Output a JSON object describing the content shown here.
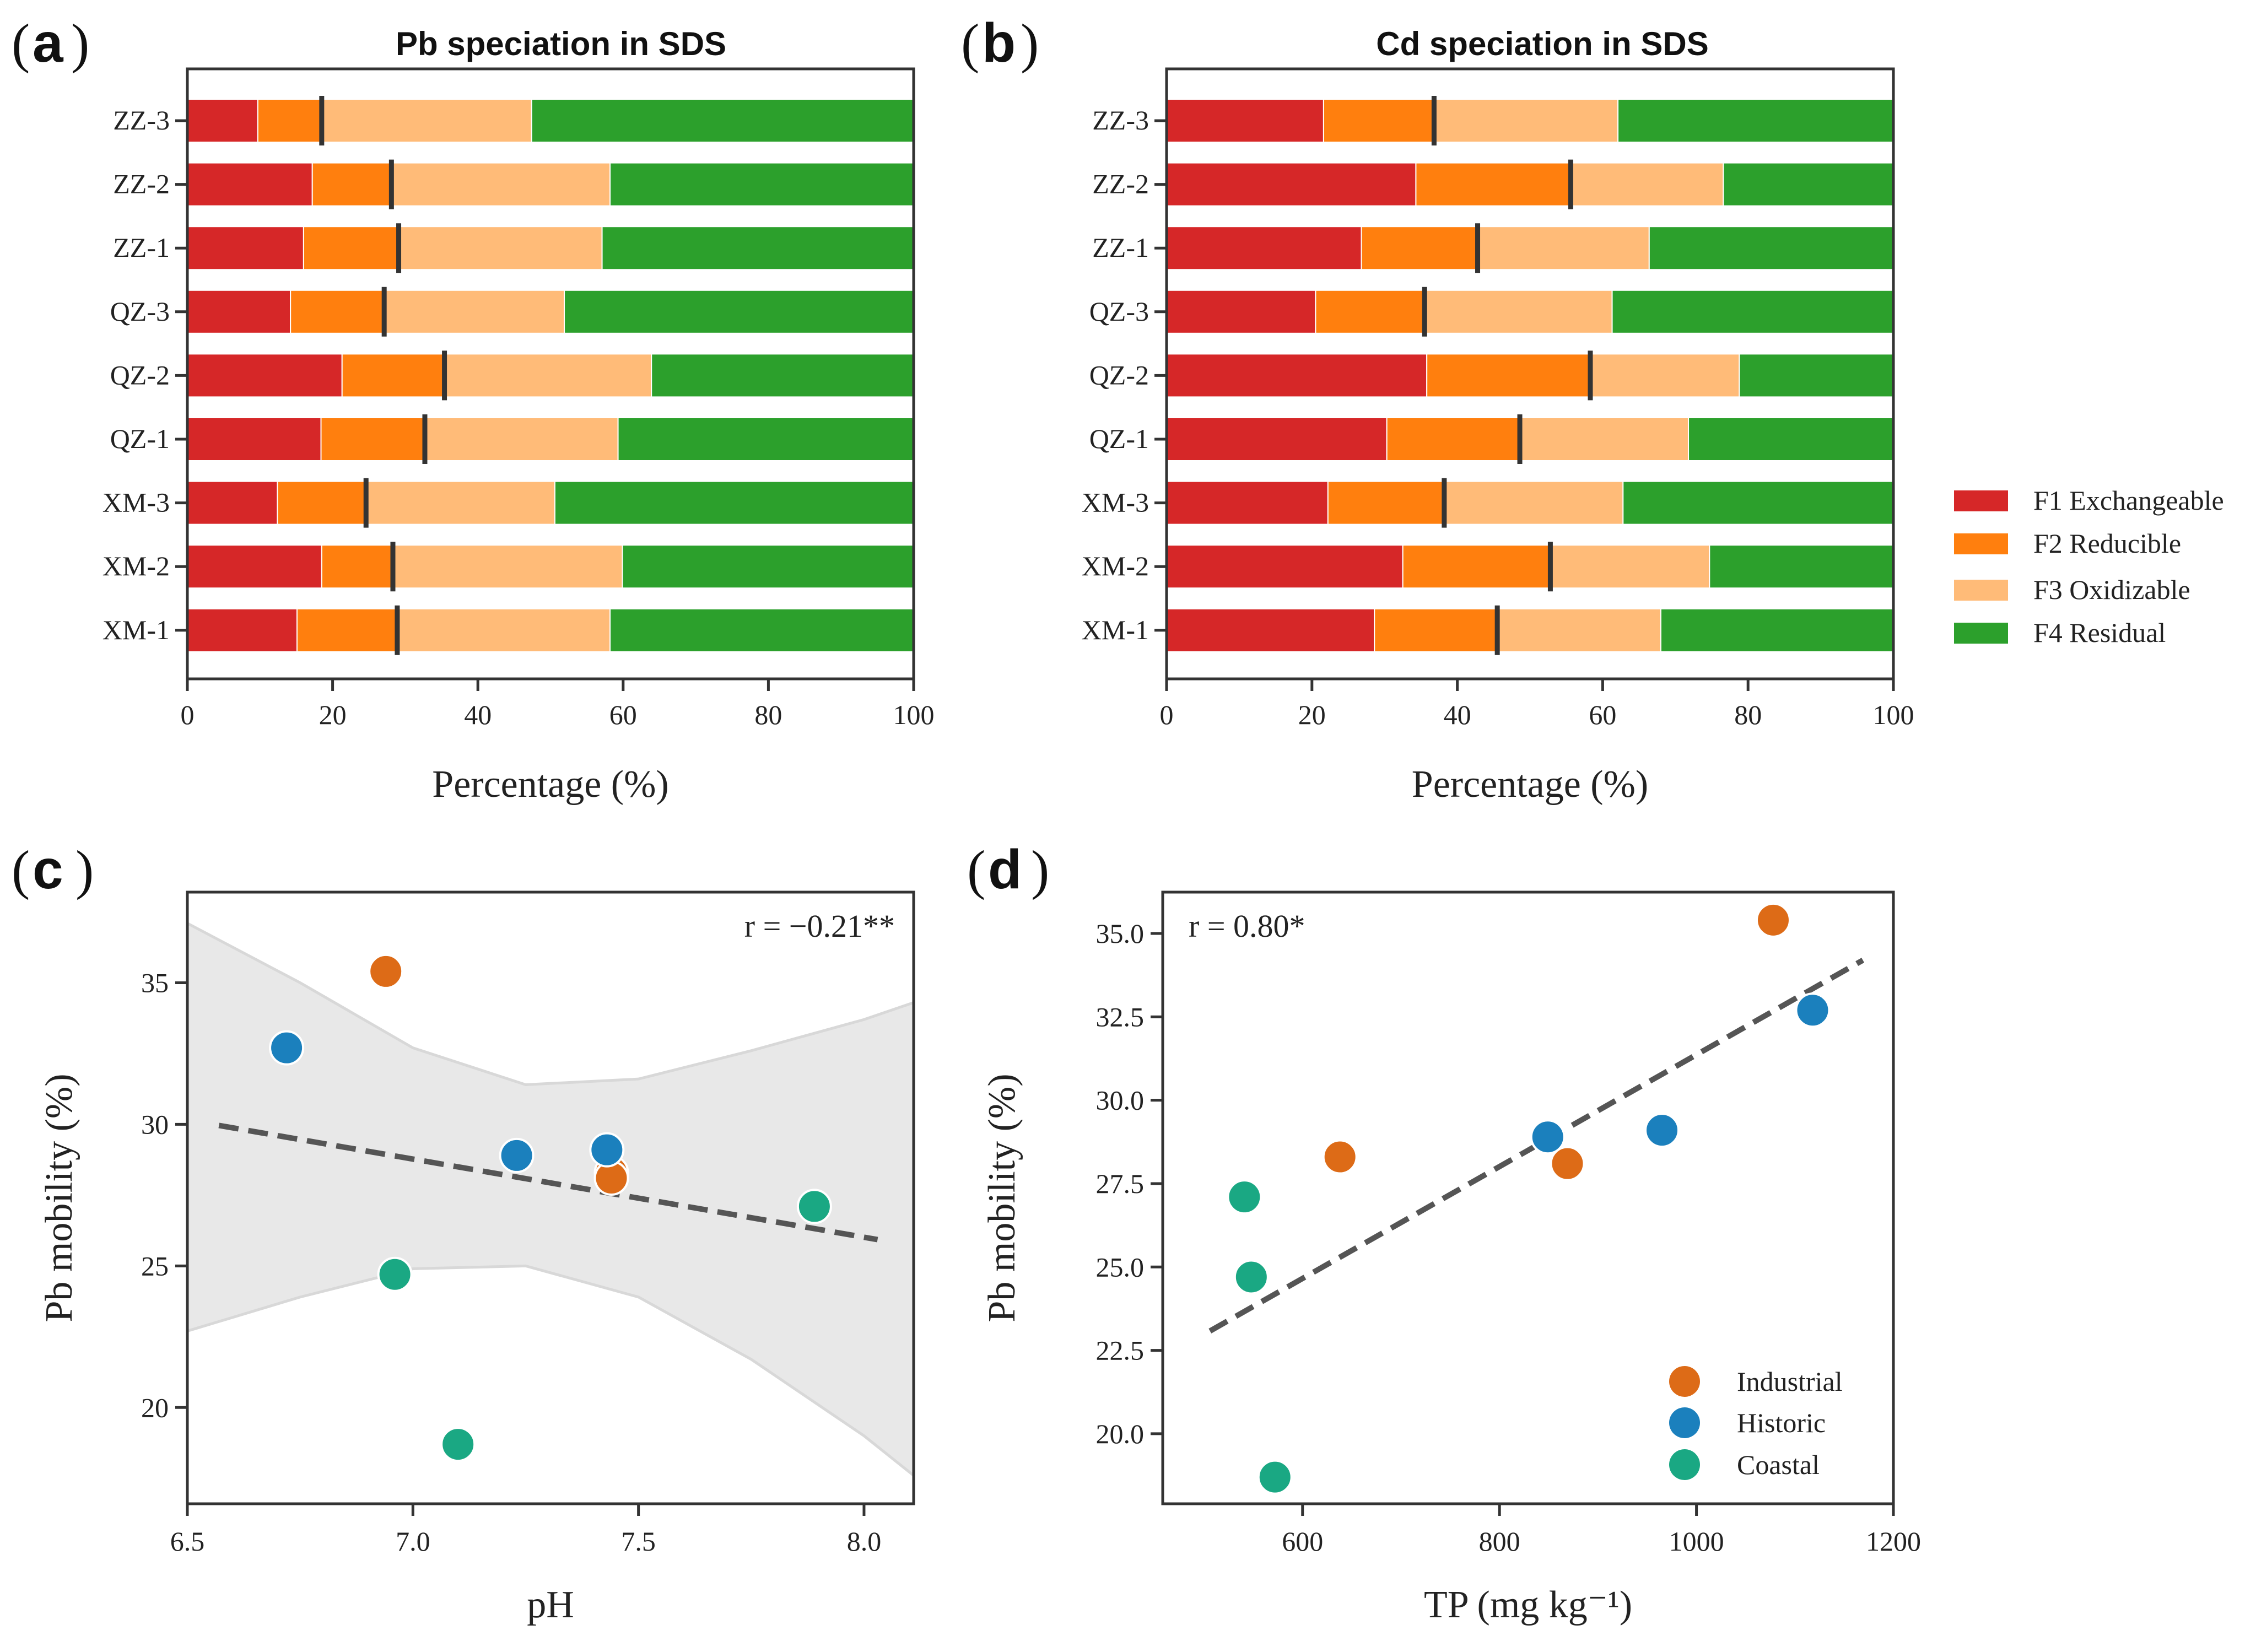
{
  "colors": {
    "F1": "#d62728",
    "F2": "#ff7f0e",
    "F3": "#ffbb78",
    "F4": "#2ca02c",
    "Industrial": "#dd6b17",
    "Historic": "#1b80bd",
    "Coastal": "#1aa883",
    "band": "#e8e8e8",
    "axis": "#333333",
    "trend": "#555555"
  },
  "chart_data": [
    {
      "panel": "a",
      "type": "bar",
      "orientation": "horizontal",
      "stacked": true,
      "title": "Pb speciation in SDS",
      "xlabel": "Percentage (%)",
      "ylabel": "",
      "xlim": [
        0,
        100
      ],
      "xticks": [
        "0",
        "20",
        "40",
        "60",
        "80",
        "100"
      ],
      "categories": [
        "ZZ-3",
        "ZZ-2",
        "ZZ-1",
        "QZ-3",
        "QZ-2",
        "QZ-1",
        "XM-3",
        "XM-2",
        "XM-1"
      ],
      "series": [
        {
          "name": "F1 Exchangeable",
          "key": "F1",
          "values": [
            9.7,
            17.2,
            16.0,
            14.2,
            21.3,
            18.4,
            12.4,
            18.5,
            15.1
          ]
        },
        {
          "name": "F2 Reducible",
          "key": "F2",
          "values": [
            8.8,
            10.9,
            13.1,
            12.9,
            14.1,
            14.3,
            12.2,
            9.8,
            13.8
          ]
        },
        {
          "name": "F3 Oxidizable",
          "key": "F3",
          "values": [
            28.9,
            30.1,
            28.0,
            24.8,
            28.5,
            26.6,
            26.0,
            31.6,
            29.3
          ]
        },
        {
          "name": "F4 Residual",
          "key": "F4",
          "values": [
            52.6,
            41.8,
            42.9,
            48.1,
            36.1,
            40.7,
            49.4,
            40.1,
            41.8
          ]
        }
      ],
      "marker": "F1+F2 mobility"
    },
    {
      "panel": "b",
      "type": "bar",
      "orientation": "horizontal",
      "stacked": true,
      "title": "Cd speciation in SDS",
      "xlabel": "Percentage (%)",
      "ylabel": "",
      "xlim": [
        0,
        100
      ],
      "xticks": [
        "0",
        "20",
        "40",
        "60",
        "80",
        "100"
      ],
      "categories": [
        "ZZ-3",
        "ZZ-2",
        "ZZ-1",
        "QZ-3",
        "QZ-2",
        "QZ-1",
        "XM-3",
        "XM-2",
        "XM-1"
      ],
      "series": [
        {
          "name": "F1 Exchangeable",
          "key": "F1",
          "values": [
            21.6,
            34.3,
            26.8,
            20.5,
            35.8,
            30.3,
            22.2,
            32.5,
            28.6
          ]
        },
        {
          "name": "F2 Reducible",
          "key": "F2",
          "values": [
            15.2,
            21.3,
            16.0,
            15.0,
            22.5,
            18.3,
            16.0,
            20.3,
            16.9
          ]
        },
        {
          "name": "F3 Oxidizable",
          "key": "F3",
          "values": [
            25.3,
            21.0,
            23.6,
            25.8,
            20.5,
            23.2,
            24.6,
            21.9,
            22.5
          ]
        },
        {
          "name": "F4 Residual",
          "key": "F4",
          "values": [
            37.9,
            23.4,
            33.6,
            38.7,
            21.2,
            28.2,
            37.2,
            25.3,
            32.0
          ]
        }
      ],
      "legend": [
        "F1 Exchangeable",
        "F2 Reducible",
        "F3 Oxidizable",
        "F4 Residual"
      ],
      "legend_placement": "outside-right"
    },
    {
      "panel": "c",
      "type": "scatter",
      "xlabel": "pH",
      "ylabel": "Pb mobility (%)",
      "xlim": [
        6.5,
        8.11
      ],
      "ylim": [
        16.6,
        38.2
      ],
      "xticks": [
        6.5,
        7.0,
        7.5,
        8.0
      ],
      "xtick_labels": [
        "6.5",
        "7.0",
        "7.5",
        "8.0"
      ],
      "yticks": [
        20,
        25,
        30,
        35
      ],
      "ytick_labels": [
        "20",
        "25",
        "30",
        "35"
      ],
      "annotation": "r = −0.21**",
      "points": [
        {
          "group": "Industrial",
          "x": 6.94,
          "y": 35.4
        },
        {
          "group": "Industrial",
          "x": 7.44,
          "y": 28.3
        },
        {
          "group": "Industrial",
          "x": 7.44,
          "y": 28.1
        },
        {
          "group": "Historic",
          "x": 6.72,
          "y": 32.7
        },
        {
          "group": "Historic",
          "x": 7.23,
          "y": 28.9
        },
        {
          "group": "Historic",
          "x": 7.43,
          "y": 29.1
        },
        {
          "group": "Coastal",
          "x": 7.89,
          "y": 27.1
        },
        {
          "group": "Coastal",
          "x": 6.96,
          "y": 24.7
        },
        {
          "group": "Coastal",
          "x": 7.1,
          "y": 18.7
        }
      ],
      "trend": {
        "x": [
          6.57,
          8.03
        ],
        "y": [
          29.96,
          25.93
        ]
      },
      "ci_band": {
        "x": [
          6.5,
          6.75,
          7.0,
          7.25,
          7.5,
          7.75,
          8.0,
          8.11
        ],
        "upper": [
          37.1,
          35.0,
          32.7,
          31.4,
          31.6,
          32.6,
          33.7,
          34.3
        ],
        "lower": [
          22.7,
          23.9,
          24.9,
          25.0,
          23.9,
          21.7,
          19.0,
          17.6
        ]
      }
    },
    {
      "panel": "d",
      "type": "scatter",
      "xlabel": "TP (mg kg⁻¹)",
      "ylabel": "Pb mobility (%)",
      "xlim": [
        458,
        1200
      ],
      "ylim": [
        17.9,
        36.24
      ],
      "xticks": [
        600,
        800,
        1000,
        1200
      ],
      "xtick_labels": [
        "600",
        "800",
        "1000",
        "1200"
      ],
      "yticks": [
        20,
        22.5,
        25,
        27.5,
        30,
        32.5,
        35
      ],
      "ytick_labels": [
        "20.0",
        "22.5",
        "25.0",
        "27.5",
        "30.0",
        "32.5",
        "35.0"
      ],
      "annotation": "r = 0.80*",
      "points": [
        {
          "group": "Industrial",
          "x": 1078,
          "y": 35.4
        },
        {
          "group": "Industrial",
          "x": 638,
          "y": 28.3
        },
        {
          "group": "Industrial",
          "x": 869,
          "y": 28.1
        },
        {
          "group": "Historic",
          "x": 849,
          "y": 28.9
        },
        {
          "group": "Historic",
          "x": 965,
          "y": 29.1
        },
        {
          "group": "Historic",
          "x": 1118,
          "y": 32.7
        },
        {
          "group": "Coastal",
          "x": 541,
          "y": 27.1
        },
        {
          "group": "Coastal",
          "x": 548,
          "y": 24.7
        },
        {
          "group": "Coastal",
          "x": 572,
          "y": 18.7
        }
      ],
      "trend": {
        "x": [
          506,
          1169
        ],
        "y": [
          23.08,
          34.2
        ]
      },
      "legend": [
        "Industrial",
        "Historic",
        "Coastal"
      ],
      "legend_placement": "lower-right"
    }
  ]
}
